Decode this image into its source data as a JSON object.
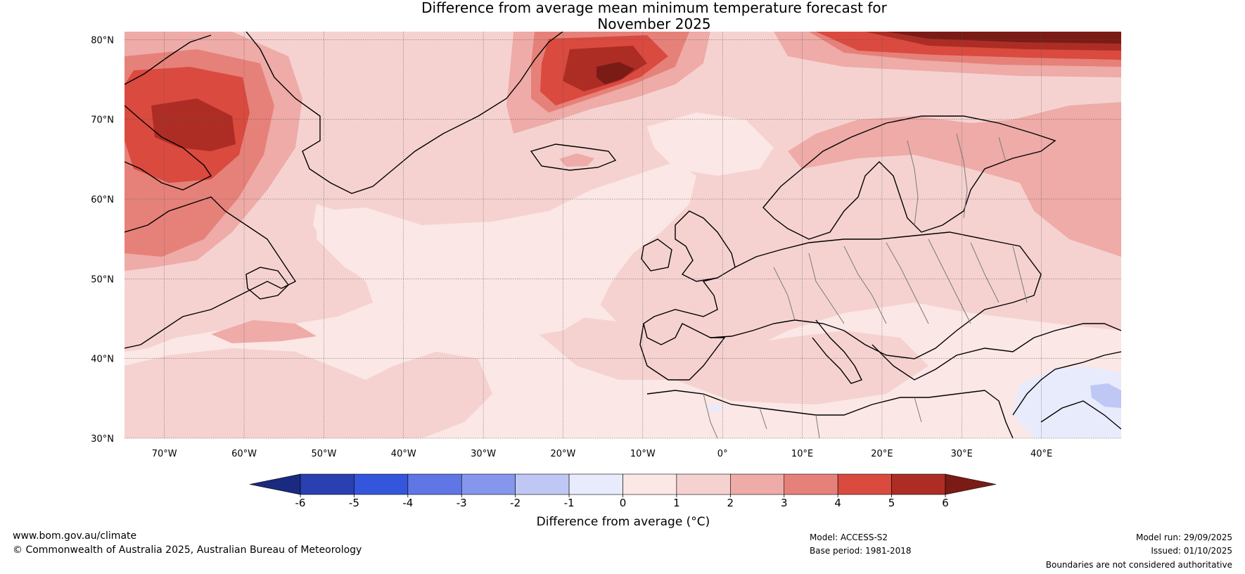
{
  "title": {
    "line1": "Difference from average mean minimum temperature forecast for",
    "line2": "November 2025"
  },
  "map": {
    "lat_labels": [
      "80°N",
      "70°N",
      "60°N",
      "50°N",
      "40°N",
      "30°N"
    ],
    "lon_labels": [
      "70°W",
      "60°W",
      "50°W",
      "40°W",
      "30°W",
      "20°W",
      "10°W",
      "0°",
      "10°E",
      "20°E",
      "30°E",
      "40°E"
    ],
    "lat_range": [
      30,
      81
    ],
    "lon_range": [
      -75,
      50
    ]
  },
  "colorbar": {
    "ticks": [
      "-6",
      "-5",
      "-4",
      "-3",
      "-2",
      "-1",
      "0",
      "1",
      "2",
      "3",
      "4",
      "5",
      "6"
    ],
    "colors": {
      "below_-6": "#1a2a80",
      "-6_-5": "#2a3fb0",
      "-5_-4": "#3456dc",
      "-4_-3": "#5f76e4",
      "-3_-2": "#8597ec",
      "-2_-1": "#bfc8f4",
      "-1_0": "#e8ebfb",
      "0_1": "#fbe7e5",
      "1_2": "#f5d2d0",
      "2_3": "#eeaba7",
      "3_4": "#e6817a",
      "4_5": "#da4a3f",
      "5_6": "#ad2d25",
      "above_6": "#7a1b16"
    },
    "label": "Difference from average (°C)"
  },
  "footer": {
    "website": "www.bom.gov.au/climate",
    "copyright": "© Commonwealth of Australia 2025, Australian Bureau of Meteorology",
    "model": "Model: ACCESS-S2",
    "base_period": "Base period: 1981-2018",
    "model_run": "Model run: 29/09/2025",
    "issued": "Issued: 01/10/2025",
    "disclaimer": "Boundaries are not considered authoritative"
  }
}
